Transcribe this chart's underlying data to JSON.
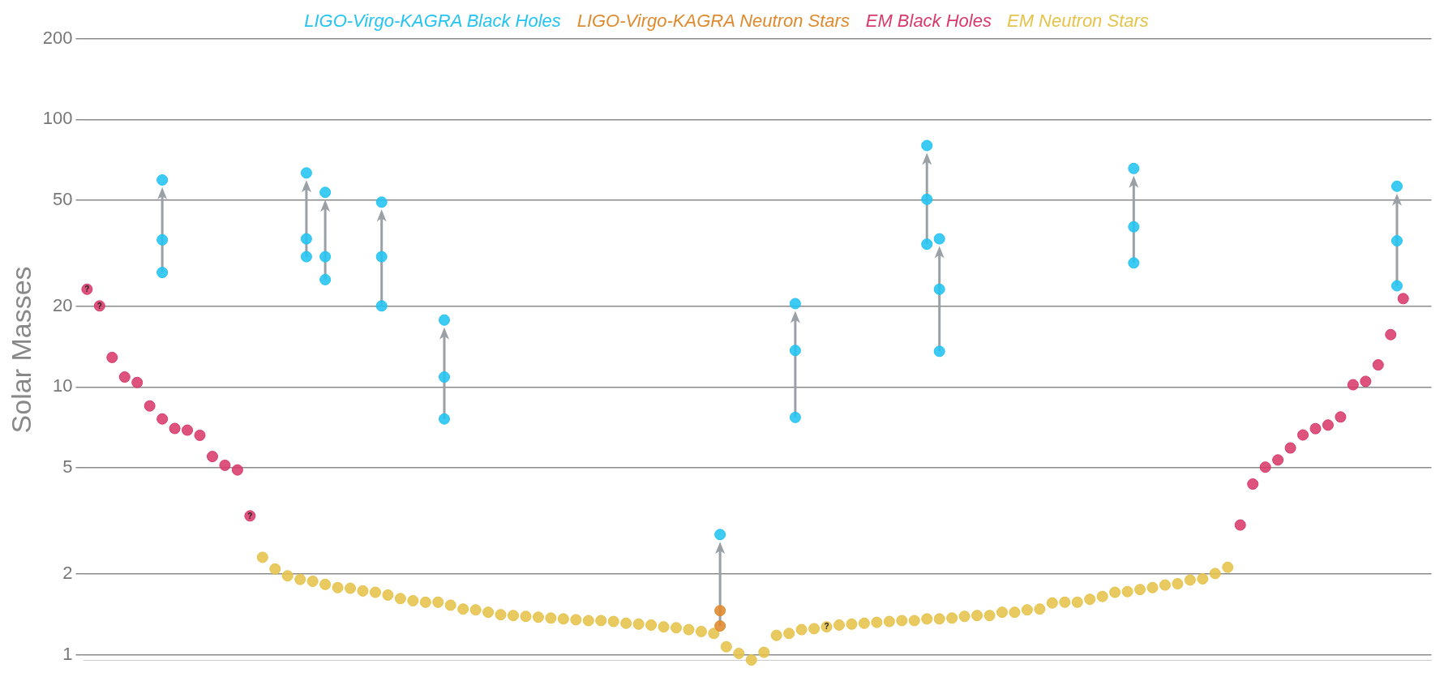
{
  "chart_data": {
    "type": "scatter",
    "ylabel": "Solar Masses",
    "log": true,
    "ylim": [
      0.95,
      200
    ],
    "yticks": [
      1,
      2,
      5,
      10,
      20,
      50,
      100,
      200
    ],
    "grid": "y",
    "legend": "top",
    "tick_labels": "y",
    "marker": "circle",
    "categories": [
      null,
      null,
      null,
      null,
      null,
      null,
      null,
      null,
      null,
      null,
      null,
      null,
      null,
      null,
      null,
      null,
      null,
      null,
      null,
      null,
      null,
      null,
      null,
      null,
      null,
      null,
      null,
      null,
      null,
      null,
      null,
      null,
      null,
      null,
      null,
      null,
      null,
      null,
      null,
      null,
      null,
      null,
      null,
      null,
      null,
      null,
      null,
      null,
      null,
      null,
      null,
      null,
      null,
      null,
      null,
      null,
      null,
      null,
      null,
      null,
      null,
      null,
      null,
      null,
      null,
      null,
      null,
      null,
      null,
      null,
      null,
      null,
      null,
      null,
      null,
      null,
      null,
      null,
      null,
      null,
      null,
      null,
      null,
      null,
      null,
      null,
      null,
      null,
      null,
      null,
      null,
      null,
      null,
      null,
      null,
      null,
      null,
      null,
      null,
      null,
      null,
      null,
      null,
      null,
      null,
      null,
      null,
      null,
      null,
      null,
      null,
      null,
      null,
      null,
      null,
      null,
      null,
      null,
      null,
      null,
      null,
      null,
      null,
      null,
      null,
      null,
      null,
      null,
      null,
      null,
      null,
      null,
      null,
      null,
      null,
      null,
      null,
      null,
      null,
      null,
      null,
      null,
      null,
      null,
      null,
      null,
      null,
      null,
      null,
      null,
      null,
      null,
      null,
      null,
      null,
      null,
      null,
      null,
      null,
      null,
      null,
      null,
      null,
      null,
      null,
      null,
      null,
      null,
      null,
      null,
      null,
      null,
      null,
      null,
      null,
      null,
      null,
      null,
      null,
      null,
      null,
      null,
      null,
      null,
      null,
      null,
      null,
      null,
      null,
      null,
      null,
      null,
      null,
      null,
      null,
      null,
      null,
      null,
      null,
      null,
      null,
      null,
      null,
      null,
      null,
      null,
      null,
      null,
      null,
      null,
      null,
      null,
      null,
      null,
      null
    ],
    "series": [
      {
        "name": "LIGO-Virgo-KAGRA Black Holes",
        "color": "#22c4f2",
        "values": [
          null,
          null,
          null,
          null,
          null,
          null,
          null,
          null,
          null,
          null,
          null,
          null,
          59.4,
          null,
          null,
          null,
          null,
          null,
          null,
          null,
          null,
          null,
          null,
          null,
          null,
          null,
          null,
          null,
          null,
          null,
          null,
          null,
          null,
          null,
          null,
          63.1,
          null,
          null,
          53.4,
          null,
          null,
          null,
          null,
          null,
          null,
          null,
          null,
          49.1,
          null,
          null,
          null,
          null,
          null,
          null,
          null,
          null,
          null,
          17.8,
          null,
          null,
          null,
          null,
          null,
          null,
          null,
          null,
          null,
          null,
          null,
          null,
          null,
          null,
          null,
          null,
          null,
          null,
          null,
          null,
          null,
          null,
          null,
          null,
          null,
          null,
          null,
          null,
          null,
          null,
          null,
          null,
          null,
          null,
          null,
          null,
          null,
          null,
          null,
          null,
          null,
          null,
          null,
          2.81,
          null,
          null,
          null,
          null,
          null,
          null,
          null,
          null,
          null,
          null,
          null,
          20.5,
          null,
          null,
          null,
          null,
          null,
          null,
          null,
          null,
          null,
          null,
          null,
          null,
          null,
          null,
          null,
          null,
          null,
          null,
          null,
          null,
          79.9,
          null,
          35.8,
          null,
          null,
          null,
          null,
          null,
          null,
          null,
          null,
          null,
          null,
          null,
          null,
          null,
          null,
          null,
          null,
          null,
          null,
          null,
          null,
          null,
          null,
          null,
          null,
          null,
          null,
          null,
          null,
          null,
          null,
          65.6,
          null,
          null,
          null,
          null,
          null,
          null,
          null,
          null,
          null,
          null,
          null,
          null,
          null,
          null,
          null,
          null,
          null,
          null,
          null,
          null,
          null,
          null,
          null,
          null,
          null,
          null,
          null,
          null,
          null,
          null,
          null,
          null,
          null,
          null,
          null,
          null,
          null,
          null,
          null,
          null,
          null,
          56.3,
          null,
          null,
          null,
          null,
          null
        ]
      },
      {
        "color": "#22c4f2",
        "values": [
          null,
          null,
          null,
          null,
          null,
          null,
          null,
          null,
          null,
          null,
          null,
          null,
          35.5,
          null,
          null,
          null,
          null,
          null,
          null,
          null,
          null,
          null,
          null,
          null,
          null,
          null,
          null,
          null,
          null,
          null,
          null,
          null,
          null,
          null,
          null,
          35.8,
          null,
          null,
          30.7,
          null,
          null,
          null,
          null,
          null,
          null,
          null,
          null,
          30.7,
          null,
          null,
          null,
          null,
          null,
          null,
          null,
          null,
          null,
          10.9,
          null,
          null,
          null,
          null,
          null,
          null,
          null,
          null,
          null,
          null,
          null,
          null,
          null,
          null,
          null,
          null,
          null,
          null,
          null,
          null,
          null,
          null,
          null,
          null,
          null,
          null,
          null,
          null,
          null,
          null,
          null,
          null,
          null,
          null,
          null,
          null,
          null,
          null,
          null,
          null,
          null,
          null,
          null,
          null,
          null,
          null,
          null,
          null,
          null,
          null,
          null,
          null,
          null,
          null,
          null,
          13.7,
          null,
          null,
          null,
          null,
          null,
          null,
          null,
          null,
          null,
          null,
          null,
          null,
          null,
          null,
          null,
          null,
          null,
          null,
          null,
          null,
          50.3,
          null,
          23.2,
          null,
          null,
          null,
          null,
          null,
          null,
          null,
          null,
          null,
          null,
          null,
          null,
          null,
          null,
          null,
          null,
          null,
          null,
          null,
          null,
          null,
          null,
          null,
          null,
          null,
          null,
          null,
          null,
          null,
          null,
          39.7,
          null,
          null,
          null,
          null,
          null,
          null,
          null,
          null,
          null,
          null,
          null,
          null,
          null,
          null,
          null,
          null,
          null,
          null,
          null,
          null,
          null,
          null,
          null,
          null,
          null,
          null,
          null,
          null,
          null,
          null,
          null,
          null,
          null,
          null,
          null,
          null,
          null,
          null,
          null,
          null,
          null,
          35.2,
          null,
          null,
          null,
          null,
          null
        ]
      },
      {
        "color": "#22c4f2",
        "values": [
          null,
          null,
          null,
          null,
          null,
          null,
          null,
          null,
          null,
          null,
          null,
          null,
          26.8,
          null,
          null,
          null,
          null,
          null,
          null,
          null,
          null,
          null,
          null,
          null,
          null,
          null,
          null,
          null,
          null,
          null,
          null,
          null,
          null,
          null,
          null,
          30.7,
          null,
          null,
          25.2,
          null,
          null,
          null,
          null,
          null,
          null,
          null,
          null,
          20.1,
          null,
          null,
          null,
          null,
          null,
          null,
          null,
          null,
          null,
          7.6,
          null,
          null,
          null,
          null,
          null,
          null,
          null,
          null,
          null,
          null,
          null,
          null,
          null,
          null,
          null,
          null,
          null,
          null,
          null,
          null,
          null,
          null,
          null,
          null,
          null,
          null,
          null,
          null,
          null,
          null,
          null,
          null,
          null,
          null,
          null,
          null,
          null,
          null,
          null,
          null,
          null,
          null,
          null,
          null,
          null,
          null,
          null,
          null,
          null,
          null,
          null,
          null,
          null,
          null,
          null,
          7.7,
          null,
          null,
          null,
          null,
          null,
          null,
          null,
          null,
          null,
          null,
          null,
          null,
          null,
          null,
          null,
          null,
          null,
          null,
          null,
          null,
          34.2,
          null,
          13.6,
          null,
          null,
          null,
          null,
          null,
          null,
          null,
          null,
          null,
          null,
          null,
          null,
          null,
          null,
          null,
          null,
          null,
          null,
          null,
          null,
          null,
          null,
          null,
          null,
          null,
          null,
          null,
          null,
          null,
          null,
          29.1,
          null,
          null,
          null,
          null,
          null,
          null,
          null,
          null,
          null,
          null,
          null,
          null,
          null,
          null,
          null,
          null,
          null,
          null,
          null,
          null,
          null,
          null,
          null,
          null,
          null,
          null,
          null,
          null,
          null,
          null,
          null,
          null,
          null,
          null,
          null,
          null,
          null,
          null,
          null,
          null,
          null,
          23.9,
          null,
          null,
          null,
          null,
          null
        ]
      },
      {
        "name": "LIGO-Virgo-KAGRA Neutron Stars",
        "color": "#e08a2e",
        "values": [
          null,
          null,
          null,
          null,
          null,
          null,
          null,
          null,
          null,
          null,
          null,
          null,
          null,
          null,
          null,
          null,
          null,
          null,
          null,
          null,
          null,
          null,
          null,
          null,
          null,
          null,
          null,
          null,
          null,
          null,
          null,
          null,
          null,
          null,
          null,
          null,
          null,
          null,
          null,
          null,
          null,
          null,
          null,
          null,
          null,
          null,
          null,
          null,
          null,
          null,
          null,
          null,
          null,
          null,
          null,
          null,
          null,
          null,
          null,
          null,
          null,
          null,
          null,
          null,
          null,
          null,
          null,
          null,
          null,
          null,
          null,
          null,
          null,
          null,
          null,
          null,
          null,
          null,
          null,
          null,
          null,
          null,
          null,
          null,
          null,
          null,
          null,
          null,
          null,
          null,
          null,
          null,
          null,
          null,
          null,
          null,
          null,
          null,
          null,
          null,
          null,
          1.46,
          null,
          null,
          null,
          null,
          null,
          null,
          null,
          null,
          null,
          null,
          null,
          null,
          null,
          null,
          null,
          null,
          null,
          null,
          null,
          null,
          null,
          null,
          null,
          null,
          null,
          null,
          null,
          null,
          null,
          null,
          null,
          null,
          null,
          null,
          null,
          null,
          null,
          null,
          null,
          null,
          null,
          null,
          null,
          null,
          null,
          null,
          null,
          null,
          null,
          null,
          null,
          null,
          null,
          null,
          null,
          null,
          null,
          null,
          null,
          null,
          null,
          null,
          null,
          null,
          null,
          null,
          null,
          null,
          null,
          null,
          null,
          null,
          null,
          null,
          null,
          null,
          null,
          null,
          null,
          null,
          null,
          null,
          null,
          null,
          null,
          null,
          null,
          null,
          null,
          null,
          null,
          null,
          null,
          null,
          null,
          null,
          null,
          null,
          null,
          null,
          null,
          null,
          null,
          null,
          null,
          null,
          null,
          null,
          null,
          null,
          null,
          null,
          null
        ]
      },
      {
        "color": "#e08a2e",
        "values": [
          null,
          null,
          null,
          null,
          null,
          null,
          null,
          null,
          null,
          null,
          null,
          null,
          null,
          null,
          null,
          null,
          null,
          null,
          null,
          null,
          null,
          null,
          null,
          null,
          null,
          null,
          null,
          null,
          null,
          null,
          null,
          null,
          null,
          null,
          null,
          null,
          null,
          null,
          null,
          null,
          null,
          null,
          null,
          null,
          null,
          null,
          null,
          null,
          null,
          null,
          null,
          null,
          null,
          null,
          null,
          null,
          null,
          null,
          null,
          null,
          null,
          null,
          null,
          null,
          null,
          null,
          null,
          null,
          null,
          null,
          null,
          null,
          null,
          null,
          null,
          null,
          null,
          null,
          null,
          null,
          null,
          null,
          null,
          null,
          null,
          null,
          null,
          null,
          null,
          null,
          null,
          null,
          null,
          null,
          null,
          null,
          null,
          null,
          null,
          null,
          null,
          1.28,
          null,
          null,
          null,
          null,
          null,
          null,
          null,
          null,
          null,
          null,
          null,
          null,
          null,
          null,
          null,
          null,
          null,
          null,
          null,
          null,
          null,
          null,
          null,
          null,
          null,
          null,
          null,
          null,
          null,
          null,
          null,
          null,
          null,
          null,
          null,
          null,
          null,
          null,
          null,
          null,
          null,
          null,
          null,
          null,
          null,
          null,
          null,
          null,
          null,
          null,
          null,
          null,
          null,
          null,
          null,
          null,
          null,
          null,
          null,
          null,
          null,
          null,
          null,
          null,
          null,
          null,
          null,
          null,
          null,
          null,
          null,
          null,
          null,
          null,
          null,
          null,
          null,
          null,
          null,
          null,
          null,
          null,
          null,
          null,
          null,
          null,
          null,
          null,
          null,
          null,
          null,
          null,
          null,
          null,
          null,
          null,
          null,
          null,
          null,
          null,
          null,
          null,
          null,
          null,
          null,
          null,
          null,
          null,
          null,
          null,
          null,
          null,
          null
        ]
      },
      {
        "name": "EM Black Holes",
        "color": "#d93a6c",
        "values": [
          23.2,
          null,
          20.1,
          null,
          12.9,
          null,
          10.9,
          null,
          10.4,
          null,
          8.5,
          null,
          7.6,
          null,
          7.0,
          null,
          6.9,
          null,
          6.6,
          null,
          5.5,
          null,
          5.1,
          null,
          4.9,
          null,
          3.3,
          null,
          null,
          null,
          null,
          null,
          null,
          null,
          null,
          null,
          null,
          null,
          null,
          null,
          null,
          null,
          null,
          null,
          null,
          null,
          null,
          null,
          null,
          null,
          null,
          null,
          null,
          null,
          null,
          null,
          null,
          null,
          null,
          null,
          null,
          null,
          null,
          null,
          null,
          null,
          null,
          null,
          null,
          null,
          null,
          null,
          null,
          null,
          null,
          null,
          null,
          null,
          null,
          null,
          null,
          null,
          null,
          null,
          null,
          null,
          null,
          null,
          null,
          null,
          null,
          null,
          null,
          null,
          null,
          null,
          null,
          null,
          null,
          null,
          null,
          null,
          null,
          null,
          null,
          null,
          null,
          null,
          null,
          null,
          null,
          null,
          null,
          null,
          null,
          null,
          null,
          null,
          null,
          null,
          null,
          null,
          null,
          null,
          null,
          null,
          null,
          null,
          null,
          null,
          null,
          null,
          null,
          null,
          null,
          null,
          null,
          null,
          null,
          null,
          null,
          null,
          null,
          null,
          null,
          null,
          null,
          null,
          null,
          null,
          null,
          null,
          null,
          null,
          null,
          null,
          null,
          null,
          null,
          null,
          null,
          null,
          null,
          null,
          null,
          null,
          null,
          null,
          null,
          null,
          null,
          null,
          null,
          null,
          null,
          null,
          null,
          null,
          null,
          null,
          null,
          null,
          null,
          null,
          3.05,
          null,
          4.34,
          null,
          5.02,
          null,
          5.34,
          null,
          5.92,
          null,
          6.62,
          null,
          6.99,
          null,
          7.21,
          null,
          7.73,
          null,
          10.2,
          null,
          10.5,
          null,
          12.1,
          null,
          15.7,
          null,
          21.4,
          null,
          null,
          null,
          null
        ],
        "value_labels": [
          "?",
          null,
          "?",
          null,
          null,
          null,
          null,
          null,
          null,
          null,
          null,
          null,
          null,
          null,
          null,
          null,
          null,
          null,
          null,
          null,
          null,
          null,
          null,
          null,
          null,
          null,
          "?",
          null,
          null,
          null,
          null,
          null,
          null,
          null,
          null,
          null,
          null,
          null,
          null,
          null,
          null,
          null,
          null,
          null,
          null,
          null,
          null,
          null,
          null,
          null,
          null,
          null,
          null,
          null,
          null,
          null,
          null,
          null,
          null,
          null,
          null,
          null,
          null,
          null,
          null,
          null,
          null,
          null,
          null,
          null,
          null,
          null,
          null,
          null,
          null,
          null,
          null,
          null,
          null,
          null,
          null,
          null,
          null,
          null,
          null,
          null,
          null,
          null,
          null,
          null,
          null,
          null,
          null,
          null,
          null,
          null,
          null,
          null,
          null,
          null,
          null,
          null,
          null,
          null,
          null,
          null,
          null,
          null,
          null,
          null,
          null,
          null,
          null,
          null,
          null,
          null,
          null,
          null,
          null,
          null,
          null,
          null,
          null,
          null,
          null,
          null,
          null,
          null,
          null,
          null,
          null,
          null,
          null,
          null,
          null,
          null,
          null,
          null,
          null,
          null,
          null,
          null,
          null,
          null,
          null,
          null,
          null,
          null,
          null,
          null,
          null,
          null,
          null,
          null,
          null,
          null,
          null,
          null,
          null,
          null,
          null,
          null,
          null,
          null,
          null,
          null,
          null,
          null,
          null,
          null,
          null,
          null,
          null,
          null,
          null,
          null,
          null,
          null,
          null,
          null,
          null,
          null,
          null,
          null,
          null,
          null,
          null,
          null,
          null,
          null,
          null,
          null,
          null,
          null,
          null,
          null,
          null,
          null,
          null,
          null,
          null,
          null,
          null,
          null,
          null,
          null,
          null,
          null,
          null,
          null,
          null,
          null,
          null,
          null,
          null
        ]
      },
      {
        "name": "EM Neutron Stars",
        "color": "#e6c34a",
        "values": [
          null,
          null,
          null,
          null,
          null,
          null,
          null,
          null,
          null,
          null,
          null,
          null,
          null,
          null,
          null,
          null,
          null,
          null,
          null,
          null,
          null,
          null,
          null,
          null,
          null,
          null,
          null,
          null,
          2.31,
          null,
          2.09,
          null,
          1.97,
          null,
          1.91,
          null,
          1.88,
          null,
          1.83,
          null,
          1.78,
          null,
          1.77,
          null,
          1.73,
          null,
          1.71,
          null,
          1.67,
          null,
          1.62,
          null,
          1.59,
          null,
          1.57,
          null,
          1.57,
          null,
          1.53,
          null,
          1.48,
          null,
          1.47,
          null,
          1.44,
          null,
          1.41,
          null,
          1.4,
          null,
          1.39,
          null,
          1.38,
          null,
          1.37,
          null,
          1.36,
          null,
          1.35,
          null,
          1.34,
          null,
          1.34,
          null,
          1.33,
          null,
          1.31,
          null,
          1.3,
          null,
          1.29,
          null,
          1.27,
          null,
          1.26,
          null,
          1.24,
          null,
          1.22,
          null,
          1.2,
          null,
          1.07,
          null,
          1.01,
          null,
          0.955,
          null,
          1.02,
          null,
          1.18,
          null,
          1.2,
          null,
          1.24,
          null,
          1.25,
          null,
          1.27,
          null,
          1.29,
          null,
          1.3,
          null,
          1.31,
          null,
          1.32,
          null,
          1.33,
          null,
          1.34,
          null,
          1.34,
          null,
          1.36,
          null,
          1.36,
          null,
          1.37,
          null,
          1.39,
          null,
          1.4,
          null,
          1.4,
          null,
          1.44,
          null,
          1.44,
          null,
          1.47,
          null,
          1.48,
          null,
          1.56,
          null,
          1.57,
          null,
          1.57,
          null,
          1.61,
          null,
          1.65,
          null,
          1.71,
          null,
          1.72,
          null,
          1.75,
          null,
          1.78,
          null,
          1.82,
          null,
          1.84,
          null,
          1.9,
          null,
          1.92,
          null,
          2.01,
          null,
          2.12,
          null,
          null,
          null,
          null,
          null,
          null,
          null,
          null,
          null,
          null,
          null,
          null,
          null,
          null,
          null,
          null,
          null,
          null,
          null,
          null,
          null,
          null,
          null,
          null,
          null,
          null,
          null,
          null,
          null,
          null,
          null,
          null
        ],
        "value_labels": [
          null,
          null,
          null,
          null,
          null,
          null,
          null,
          null,
          null,
          null,
          null,
          null,
          null,
          null,
          null,
          null,
          null,
          null,
          null,
          null,
          null,
          null,
          null,
          null,
          null,
          null,
          null,
          null,
          null,
          null,
          null,
          null,
          null,
          null,
          null,
          null,
          null,
          null,
          null,
          null,
          null,
          null,
          null,
          null,
          null,
          null,
          null,
          null,
          null,
          null,
          null,
          null,
          null,
          null,
          null,
          null,
          null,
          null,
          null,
          null,
          null,
          null,
          null,
          null,
          null,
          null,
          null,
          null,
          null,
          null,
          null,
          null,
          null,
          null,
          null,
          null,
          null,
          null,
          null,
          null,
          null,
          null,
          null,
          null,
          null,
          null,
          null,
          null,
          null,
          null,
          null,
          null,
          null,
          null,
          null,
          null,
          null,
          null,
          null,
          null,
          null,
          null,
          null,
          null,
          null,
          null,
          null,
          null,
          null,
          null,
          null,
          null,
          null,
          null,
          null,
          null,
          null,
          null,
          "?",
          null,
          null,
          null,
          null,
          null,
          null,
          null,
          null,
          null,
          null,
          null,
          null,
          null,
          null,
          null,
          null,
          null,
          null,
          null,
          null,
          null,
          null,
          null,
          null,
          null,
          null,
          null,
          null,
          null,
          null,
          null,
          null,
          null,
          null,
          null,
          null,
          null,
          null,
          null,
          null,
          null,
          null,
          null,
          null,
          null,
          null,
          null,
          null,
          null,
          null,
          null,
          null,
          null,
          null,
          null,
          null,
          null,
          null,
          null,
          null,
          null,
          null,
          null,
          null,
          null,
          null,
          null,
          null,
          null,
          null,
          null,
          null,
          null,
          null,
          null,
          null,
          null,
          null,
          null,
          null,
          null,
          null,
          null,
          null,
          null,
          null,
          null,
          null,
          null,
          null,
          null,
          null,
          null,
          null,
          null,
          null
        ]
      }
    ]
  }
}
